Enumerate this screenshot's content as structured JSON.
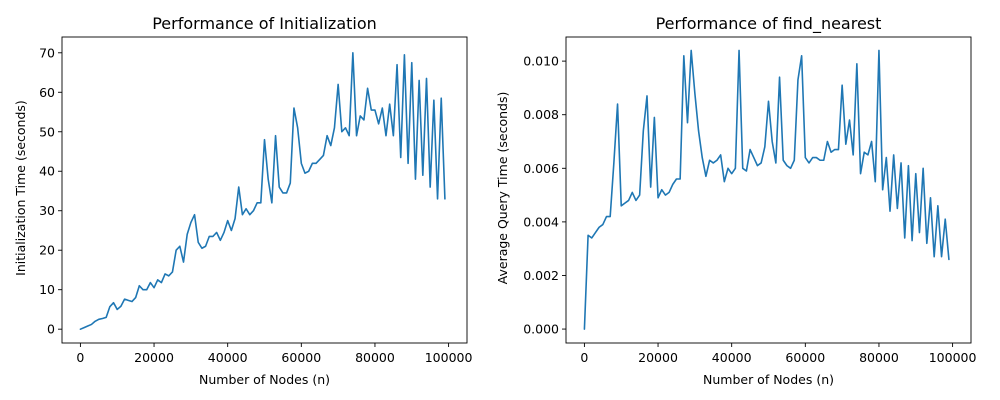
{
  "chart_data": [
    {
      "type": "line",
      "title": "Performance of Initialization",
      "xlabel": "Number of Nodes (n)",
      "ylabel": "Initialization Time (seconds)",
      "xlim": [
        -5000,
        105000
      ],
      "ylim": [
        -3.5,
        74
      ],
      "xticks": [
        0,
        20000,
        40000,
        60000,
        80000,
        100000
      ],
      "yticks": [
        0,
        10,
        20,
        30,
        40,
        50,
        60,
        70
      ],
      "series": [
        {
          "color": "#1f77b4",
          "x": [
            0,
            1000,
            2000,
            3000,
            4000,
            5000,
            6000,
            7000,
            8000,
            9000,
            10000,
            11000,
            12000,
            13000,
            14000,
            15000,
            16000,
            17000,
            18000,
            19000,
            20000,
            21000,
            22000,
            23000,
            24000,
            25000,
            26000,
            27000,
            28000,
            29000,
            30000,
            31000,
            32000,
            33000,
            34000,
            35000,
            36000,
            37000,
            38000,
            39000,
            40000,
            41000,
            42000,
            43000,
            44000,
            45000,
            46000,
            47000,
            48000,
            49000,
            50000,
            51000,
            52000,
            53000,
            54000,
            55000,
            56000,
            57000,
            58000,
            59000,
            60000,
            61000,
            62000,
            63000,
            64000,
            65000,
            66000,
            67000,
            68000,
            69000,
            70000,
            71000,
            72000,
            73000,
            74000,
            75000,
            76000,
            77000,
            78000,
            79000,
            80000,
            81000,
            82000,
            83000,
            84000,
            85000,
            86000,
            87000,
            88000,
            89000,
            90000,
            91000,
            92000,
            93000,
            94000,
            95000,
            96000,
            97000,
            98000,
            99000
          ],
          "y": [
            0,
            0.4,
            0.8,
            1.2,
            2.0,
            2.5,
            2.7,
            3.0,
            5.7,
            6.7,
            5.0,
            5.8,
            7.6,
            7.3,
            7.0,
            8.0,
            11.0,
            10.0,
            10.0,
            11.8,
            10.5,
            12.5,
            11.8,
            14.0,
            13.5,
            14.5,
            20.0,
            21.0,
            17.0,
            24.0,
            27.0,
            29.0,
            22.0,
            20.5,
            21.0,
            23.5,
            23.5,
            24.5,
            22.5,
            24.5,
            27.5,
            25.0,
            28.0,
            36.0,
            29.0,
            30.5,
            29.0,
            30.0,
            32.0,
            32.0,
            48.0,
            38.0,
            32.0,
            49.0,
            36.0,
            34.5,
            34.5,
            37.0,
            56.0,
            51.0,
            42.0,
            39.5,
            40.0,
            42.0,
            42.0,
            43.0,
            44.0,
            49.0,
            46.5,
            51.0,
            62.0,
            50.0,
            51.0,
            49.0,
            70.0,
            49.0,
            54.0,
            53.0,
            61.0,
            55.5,
            55.5,
            52.0,
            56.0,
            49.0,
            57.0,
            49.0,
            67.0,
            43.5,
            69.5,
            42.0,
            67.5,
            38.0,
            63.0,
            39.0,
            63.5,
            36.0,
            58.0,
            33.0,
            58.5,
            33.0
          ]
        }
      ]
    },
    {
      "type": "line",
      "title": "Performance of find_nearest",
      "xlabel": "Number of Nodes (n)",
      "ylabel": "Average Query Time (seconds)",
      "xlim": [
        -5000,
        105000
      ],
      "ylim": [
        -0.00052,
        0.0109
      ],
      "xticks": [
        0,
        20000,
        40000,
        60000,
        80000,
        100000
      ],
      "yticks": [
        0.0,
        0.002,
        0.004,
        0.006,
        0.008,
        0.01
      ],
      "series": [
        {
          "color": "#1f77b4",
          "x": [
            0,
            1000,
            2000,
            3000,
            4000,
            5000,
            6000,
            7000,
            8000,
            9000,
            10000,
            11000,
            12000,
            13000,
            14000,
            15000,
            16000,
            17000,
            18000,
            19000,
            20000,
            21000,
            22000,
            23000,
            24000,
            25000,
            26000,
            27000,
            28000,
            29000,
            30000,
            31000,
            32000,
            33000,
            34000,
            35000,
            36000,
            37000,
            38000,
            39000,
            40000,
            41000,
            42000,
            43000,
            44000,
            45000,
            46000,
            47000,
            48000,
            49000,
            50000,
            51000,
            52000,
            53000,
            54000,
            55000,
            56000,
            57000,
            58000,
            59000,
            60000,
            61000,
            62000,
            63000,
            64000,
            65000,
            66000,
            67000,
            68000,
            69000,
            70000,
            71000,
            72000,
            73000,
            74000,
            75000,
            76000,
            77000,
            78000,
            79000,
            80000,
            81000,
            82000,
            83000,
            84000,
            85000,
            86000,
            87000,
            88000,
            89000,
            90000,
            91000,
            92000,
            93000,
            94000,
            95000,
            96000,
            97000,
            98000,
            99000
          ],
          "y": [
            0.0,
            0.0035,
            0.0034,
            0.0036,
            0.0038,
            0.0039,
            0.0042,
            0.0042,
            0.0062,
            0.0084,
            0.0046,
            0.0047,
            0.0048,
            0.0051,
            0.0048,
            0.005,
            0.0074,
            0.0087,
            0.0053,
            0.0079,
            0.0049,
            0.0052,
            0.005,
            0.0051,
            0.0054,
            0.0056,
            0.0056,
            0.0102,
            0.0077,
            0.0104,
            0.0088,
            0.0074,
            0.0064,
            0.0057,
            0.0063,
            0.0062,
            0.0063,
            0.0065,
            0.0055,
            0.006,
            0.0058,
            0.006,
            0.0104,
            0.006,
            0.0059,
            0.0067,
            0.0064,
            0.0061,
            0.0062,
            0.0068,
            0.0085,
            0.007,
            0.0062,
            0.0094,
            0.0063,
            0.0061,
            0.006,
            0.0063,
            0.0093,
            0.0102,
            0.0064,
            0.0062,
            0.0064,
            0.0064,
            0.0063,
            0.0063,
            0.007,
            0.0066,
            0.0067,
            0.0067,
            0.0091,
            0.0069,
            0.0078,
            0.0065,
            0.0099,
            0.0058,
            0.0066,
            0.0065,
            0.007,
            0.0055,
            0.0104,
            0.0052,
            0.0064,
            0.0044,
            0.0065,
            0.0045,
            0.0062,
            0.0034,
            0.0061,
            0.0033,
            0.0058,
            0.0036,
            0.006,
            0.0032,
            0.0049,
            0.0027,
            0.0046,
            0.0027,
            0.0041,
            0.0026
          ]
        }
      ]
    }
  ]
}
